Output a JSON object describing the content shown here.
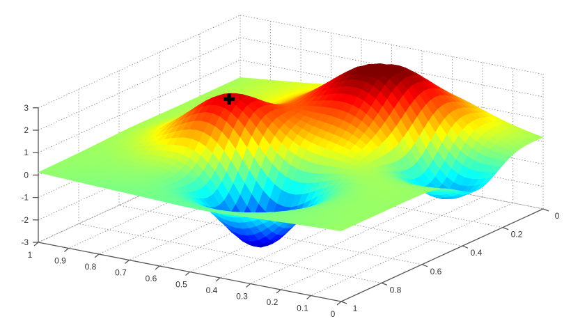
{
  "chart_data": {
    "type": "surface",
    "title": "",
    "xlabel": "",
    "ylabel": "",
    "zlabel": "",
    "xlim": [
      0,
      1
    ],
    "ylim": [
      0,
      1
    ],
    "zlim": [
      -3,
      3
    ],
    "x_ticks": [
      "0",
      "0.1",
      "0.2",
      "0.3",
      "0.4",
      "0.5",
      "0.6",
      "0.7",
      "0.8",
      "0.9",
      "1"
    ],
    "y_ticks": [
      "0",
      "0.2",
      "0.4",
      "0.6",
      "0.8",
      "1"
    ],
    "z_ticks": [
      "-3",
      "-2",
      "-1",
      "0",
      "1",
      "2",
      "3"
    ],
    "grid": true,
    "colormap": "jet",
    "features": [
      {
        "kind": "peak",
        "x": 0.67,
        "y": 0.55,
        "z": 2.4
      },
      {
        "kind": "peak",
        "x": 0.38,
        "y": 0.22,
        "z": 3.0
      },
      {
        "kind": "valley",
        "x": 0.45,
        "y": 0.73,
        "z": -2.9
      },
      {
        "kind": "valley",
        "x": 0.13,
        "y": 0.32,
        "z": -2.0
      }
    ],
    "marker": {
      "symbol": "+",
      "x": 0.67,
      "y": 0.55,
      "z": 2.4,
      "color": "#000000"
    }
  }
}
